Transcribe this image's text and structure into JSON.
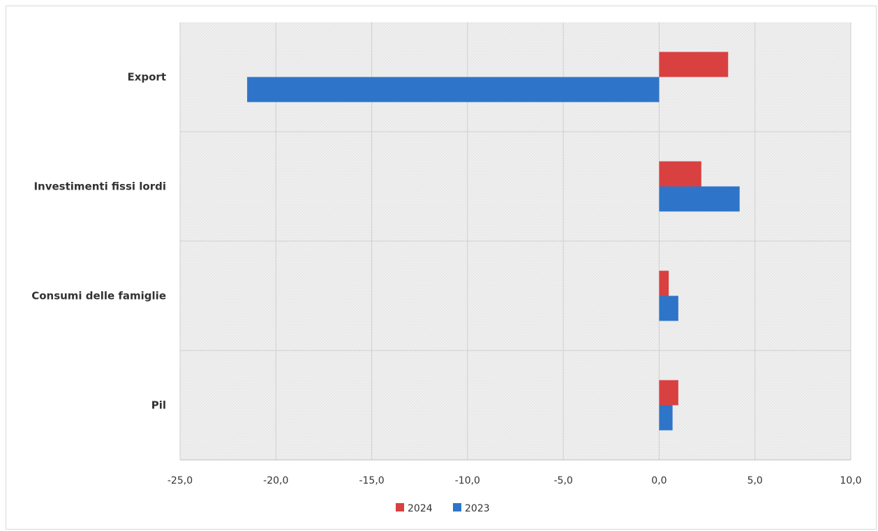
{
  "chart_data": {
    "type": "bar",
    "orientation": "horizontal",
    "categories": [
      "Export",
      "Investimenti fissi lordi",
      "Consumi delle famiglie",
      "Pil"
    ],
    "series": [
      {
        "name": "2024",
        "color": "#d94040",
        "values": [
          3.6,
          2.2,
          0.5,
          1.0
        ]
      },
      {
        "name": "2023",
        "color": "#2e75c9",
        "values": [
          -21.5,
          4.2,
          1.0,
          0.7
        ]
      }
    ],
    "xlim": [
      -25,
      10
    ],
    "xticks": [
      "-25,0",
      "-20,0",
      "-15,0",
      "-10,0",
      "-5,0",
      "0,0",
      "5,0",
      "10,0"
    ],
    "xtick_values": [
      -25,
      -20,
      -15,
      -10,
      -5,
      0,
      5,
      10
    ],
    "grid": true,
    "legend_position": "bottom"
  }
}
